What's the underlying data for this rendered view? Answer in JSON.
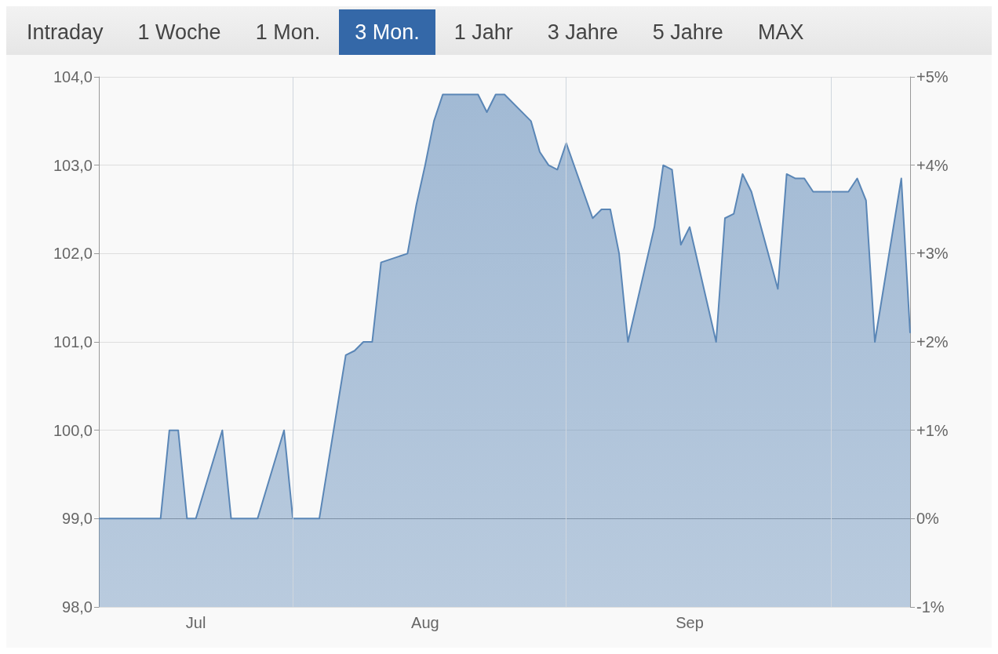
{
  "chart_data": {
    "type": "area",
    "annotations": [
      "Intraday",
      "1 Woche",
      "1 Mon.",
      "3 Mon.",
      "1 Jahr",
      "3 Jahre",
      "5 Jahre",
      "MAX"
    ],
    "x": [
      "--07-10",
      "--07-11",
      "--07-12",
      "--07-13",
      "--07-14",
      "--07-17",
      "--07-18",
      "--07-19",
      "--07-20",
      "--07-21",
      "--07-24",
      "--07-25",
      "--07-26",
      "--07-27",
      "--07-28",
      "--07-31",
      "--08-01",
      "--08-02",
      "--08-03",
      "--08-04",
      "--08-07",
      "--08-08",
      "--08-09",
      "--08-10",
      "--08-11",
      "--08-14",
      "--08-15",
      "--08-16",
      "--08-17",
      "--08-18",
      "--08-21",
      "--08-22",
      "--08-23",
      "--08-24",
      "--08-25",
      "--08-28",
      "--08-29",
      "--08-30",
      "--08-31",
      "--09-01",
      "--09-04",
      "--09-05",
      "--09-06",
      "--09-07",
      "--09-08",
      "--09-11",
      "--09-12",
      "--09-13",
      "--09-14",
      "--09-15",
      "--09-18",
      "--09-19",
      "--09-20",
      "--09-21",
      "--09-22",
      "--09-25",
      "--09-26",
      "--09-27",
      "--09-28",
      "--09-29",
      "--10-02",
      "--10-03",
      "--10-04",
      "--10-05",
      "--10-06",
      "--10-09",
      "--10-10"
    ],
    "series": [
      {
        "color": "#5a86b6",
        "values": [
          99,
          99,
          99,
          99,
          99,
          99,
          100,
          100,
          99,
          99,
          100,
          99,
          99,
          99,
          99,
          100,
          99,
          99,
          99,
          99,
          100.85,
          100.9,
          101.0,
          101.0,
          101.9,
          102.0,
          102.55,
          103.0,
          103.5,
          103.8,
          103.8,
          103.8,
          103.6,
          103.8,
          103.8,
          103.5,
          103.15,
          103.0,
          102.95,
          103.25,
          102.4,
          102.5,
          102.5,
          102.0,
          101.0,
          102.3,
          103.0,
          102.95,
          102.1,
          102.3,
          101.0,
          102.4,
          102.45,
          102.9,
          102.7,
          101.6,
          102.9,
          102.85,
          102.85,
          102.7,
          102.7,
          102.7,
          102.85,
          102.6,
          101.0,
          102.85,
          101.1
        ]
      }
    ],
    "xlim": [
      "--07-10",
      "--10-10"
    ],
    "xticks": [
      {
        "value": "--07-21",
        "label": "Jul"
      },
      {
        "value": "--08-01",
        "label": null
      },
      {
        "value": "--08-16",
        "label": "Aug"
      },
      {
        "value": "--09-01",
        "label": null
      },
      {
        "value": "--09-15",
        "label": "Sep"
      },
      {
        "value": "--10-01",
        "label": null
      }
    ],
    "ylim": [
      98,
      104
    ],
    "yticks": [
      {
        "value": 98,
        "label": "98,0"
      },
      {
        "value": 99,
        "label": "99,0"
      },
      {
        "value": 100,
        "label": "100,0"
      },
      {
        "value": 101,
        "label": "101,0"
      },
      {
        "value": 102,
        "label": "102,0"
      },
      {
        "value": 103,
        "label": "103,0"
      },
      {
        "value": 104,
        "label": "104,0"
      }
    ],
    "y2lim": [
      -1,
      5
    ],
    "y2ticks": [
      {
        "value": -1,
        "label": "-1%"
      },
      {
        "value": 0,
        "label": "0%"
      },
      {
        "value": 1,
        "label": "+1%"
      },
      {
        "value": 2,
        "label": "+2%"
      },
      {
        "value": 3,
        "label": "+3%"
      },
      {
        "value": 4,
        "label": "+4%"
      },
      {
        "value": 5,
        "label": "+5%"
      }
    ],
    "grid": true,
    "marker": "none"
  }
}
